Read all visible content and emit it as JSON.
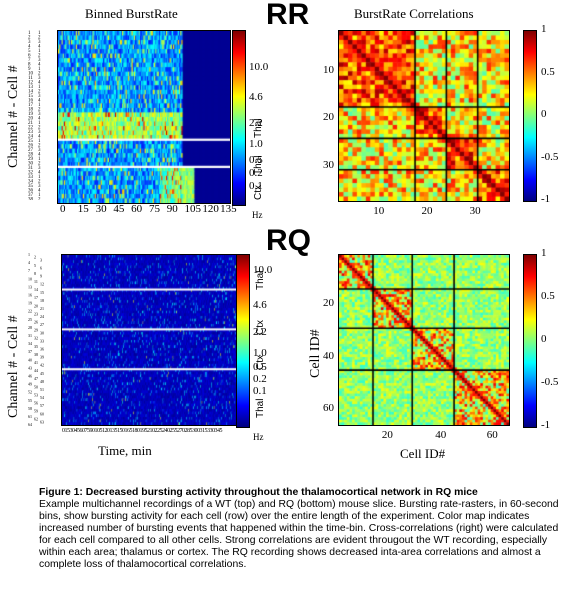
{
  "big_labels": {
    "top": "RR",
    "bottom": "RQ",
    "top_color": "#000000",
    "bottom_color": "#e8231f"
  },
  "colormap": "jet",
  "raster_top": {
    "title": "Binned BurstRate",
    "ylabel": "Channel # - Cell #",
    "x_ticks": [
      "0",
      "15",
      "30",
      "45",
      "60",
      "75",
      "90",
      "105",
      "120",
      "135"
    ],
    "regions": [
      "Thal",
      "Thal",
      "Ctx"
    ],
    "colorbar_ticks": [
      "10.0",
      "4.6",
      "2.2",
      "1.0",
      "0.5",
      "0.2",
      "0.1"
    ],
    "colorbar_unit": "Hz"
  },
  "corr_top": {
    "title": "BurstRate Correlations",
    "x_ticks": [
      "10",
      "20",
      "30"
    ],
    "y_ticks": [
      "10",
      "20",
      "30"
    ],
    "colorbar_ticks": [
      "1",
      "0.5",
      "0",
      "-0.5",
      "-1"
    ]
  },
  "raster_bottom": {
    "ylabel": "Channel # - Cell #",
    "xlabel": "Time, min",
    "x_ticks_label": "0153045607590105120135150165180195210225240255270285300315330345",
    "regions": [
      "Thal",
      "Ctx",
      "Ctx",
      "Thal"
    ],
    "colorbar_ticks": [
      "10.0",
      "4.6",
      "2.2",
      "1.0",
      "0.5",
      "0.2",
      "0.1"
    ],
    "colorbar_unit": "Hz"
  },
  "corr_bottom": {
    "xlabel": "Cell ID#",
    "ylabel": "Cell ID#",
    "x_ticks": [
      "20",
      "40",
      "60"
    ],
    "y_ticks": [
      "20",
      "40",
      "60"
    ],
    "colorbar_ticks": [
      "1",
      "0.5",
      "0",
      "-0.5",
      "-1"
    ]
  },
  "caption": {
    "title": "Figure 1: Decreased bursting activity throughout the thalamocortical network in RQ mice",
    "body": "Example multichannel recordings of a WT (top) and RQ (bottom) mouse slice.  Bursting rate-rasters, in 60-second bins, show bursting activity for each cell (row) over the entire length of the experiment.  Color map indicates increased number of bursting events that happened within the time-bin.  Cross-correlations (right) were calculated for each cell compared to all other cells.  Strong correlations are evident througout the WT recording, especially within each area; thalamus or cortex.  The RQ recording shows decreased inta-area correlations and almost a complete loss of thalamocortical correlations."
  },
  "chart_data": [
    {
      "type": "heatmap",
      "title": "Binned BurstRate",
      "ylabel": "Channel # - Cell #",
      "x_ticks": [
        0,
        15,
        30,
        45,
        60,
        75,
        90,
        105,
        120,
        135
      ],
      "regions": [
        "Thal",
        "Thal",
        "Ctx"
      ],
      "colorbar_label": "Hz",
      "colorbar_ticks": [
        10.0,
        4.6,
        2.2,
        1.0,
        0.5,
        0.2,
        0.1
      ]
    },
    {
      "type": "heatmap",
      "title": "BurstRate Correlations",
      "x_ticks": [
        10,
        20,
        30
      ],
      "y_ticks": [
        10,
        20,
        30
      ],
      "colorbar_range": [
        -1,
        1
      ],
      "colorbar_ticks": [
        1,
        0.5,
        0,
        -0.5,
        -1
      ]
    },
    {
      "type": "heatmap",
      "ylabel": "Channel # - Cell #",
      "xlabel": "Time, min",
      "regions": [
        "Thal",
        "Ctx",
        "Ctx",
        "Thal"
      ],
      "colorbar_label": "Hz",
      "colorbar_ticks": [
        10.0,
        4.6,
        2.2,
        1.0,
        0.5,
        0.2,
        0.1
      ]
    },
    {
      "type": "heatmap",
      "xlabel": "Cell ID#",
      "ylabel": "Cell ID#",
      "x_ticks": [
        20,
        40,
        60
      ],
      "y_ticks": [
        20,
        40,
        60
      ],
      "colorbar_range": [
        -1,
        1
      ],
      "colorbar_ticks": [
        1,
        0.5,
        0,
        -0.5,
        -1
      ]
    }
  ]
}
